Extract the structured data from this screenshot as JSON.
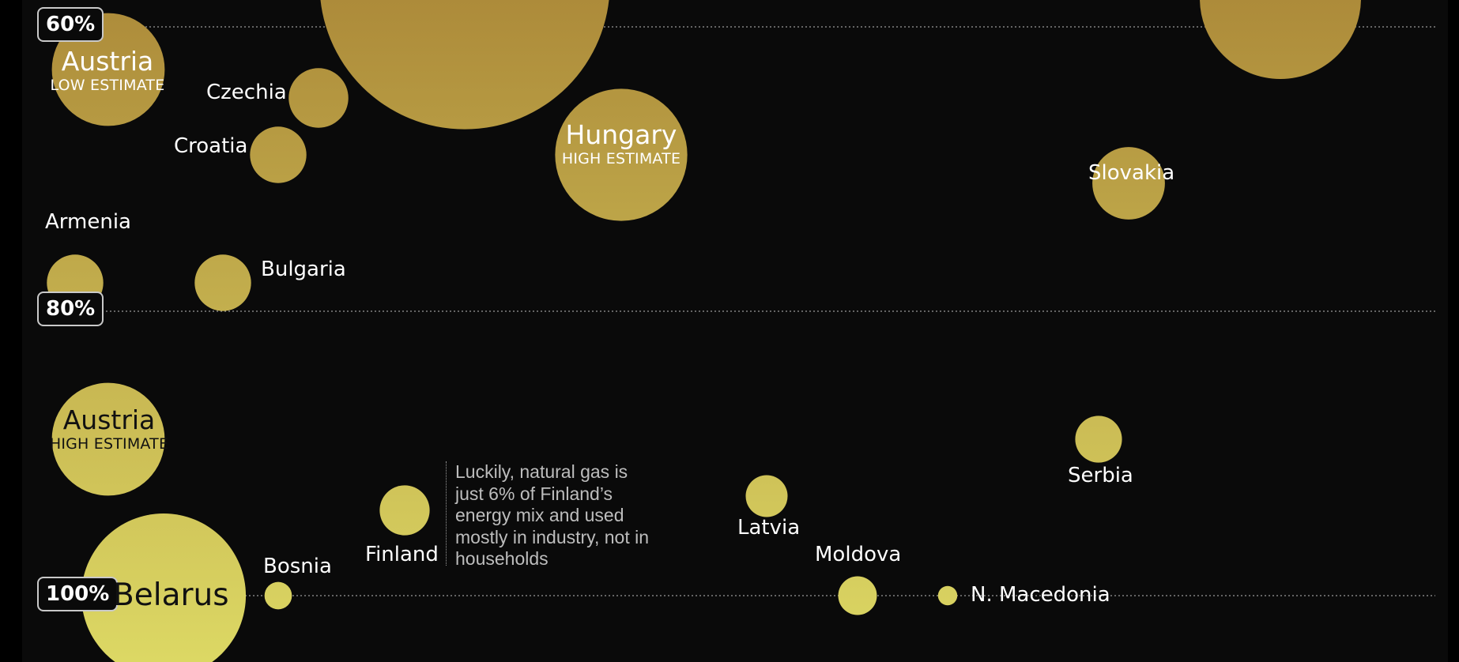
{
  "chart_data": {
    "type": "bubble",
    "measure": "dependence",
    "y_ticks": [
      "60%",
      "80%",
      "100%"
    ],
    "colors": {
      "high_band": "#ad8b3a",
      "low_band": "#dcd864",
      "gridline": "#9a9a9a"
    },
    "points": [
      {
        "name": "",
        "sub": "",
        "y": 57,
        "size": 180
      },
      {
        "name": "",
        "sub": "",
        "y": 58,
        "size": 100
      },
      {
        "name": "Austria",
        "sub": "LOW ESTIMATE",
        "y": 63,
        "size": 70
      },
      {
        "name": "Czechia",
        "sub": "",
        "y": 65,
        "size": 37
      },
      {
        "name": "Croatia",
        "sub": "",
        "y": 69,
        "size": 35
      },
      {
        "name": "Hungary",
        "sub": "HIGH ESTIMATE",
        "y": 69,
        "size": 82
      },
      {
        "name": "Slovakia",
        "sub": "",
        "y": 71,
        "size": 45
      },
      {
        "name": "Armenia",
        "sub": "",
        "y": 78,
        "size": 35
      },
      {
        "name": "Bulgaria",
        "sub": "",
        "y": 78,
        "size": 35
      },
      {
        "name": "Austria",
        "sub": "HIGH ESTIMATE",
        "y": 89,
        "size": 70
      },
      {
        "name": "Serbia",
        "sub": "",
        "y": 89,
        "size": 29
      },
      {
        "name": "Latvia",
        "sub": "",
        "y": 93,
        "size": 26
      },
      {
        "name": "Finland",
        "sub": "",
        "y": 94,
        "size": 31
      },
      {
        "name": "Belarus",
        "sub": "",
        "y": 100,
        "size": 102
      },
      {
        "name": "Bosnia",
        "sub": "",
        "y": 100,
        "size": 17
      },
      {
        "name": "Moldova",
        "sub": "",
        "y": 100,
        "size": 24
      },
      {
        "name": "N. Macedonia",
        "sub": "",
        "y": 100,
        "size": 12
      }
    ],
    "annotation": "Luckily, natural gas is just 6% of Finland’s energy mix and used mostly in industry, not in households"
  }
}
